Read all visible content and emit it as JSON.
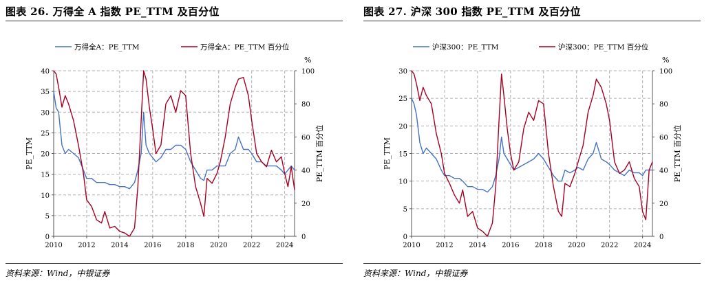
{
  "panels": [
    {
      "figure_title": "图表 26. 万得全 A 指数 PE_TTM 及百分位",
      "source": "资料来源：Wind，中银证券",
      "chart_data": {
        "type": "line",
        "x_ticks": [
          "2010",
          "2012",
          "2014",
          "2016",
          "2018",
          "2020",
          "2022",
          "2024"
        ],
        "xlim": [
          2010,
          2024.6
        ],
        "ylabel": "PE_TTM",
        "ylim": [
          0,
          40
        ],
        "y_ticks": [
          0,
          5,
          10,
          15,
          20,
          25,
          30,
          35,
          40
        ],
        "y2label": "PE_TTM 百分位",
        "y2unit": "%",
        "y2lim": [
          0,
          100
        ],
        "y2_ticks": [
          0,
          20,
          40,
          60,
          80,
          100
        ],
        "grid": true,
        "legend": "top",
        "series": [
          {
            "name": "万得全A：PE_TTM",
            "axis": "left",
            "color": "#4472c4",
            "x": [
              2010.0,
              2010.15,
              2010.3,
              2010.5,
              2010.7,
              2010.9,
              2011.2,
              2011.5,
              2011.8,
              2012.0,
              2012.3,
              2012.6,
              2012.9,
              2013.1,
              2013.4,
              2013.7,
              2014.0,
              2014.3,
              2014.6,
              2014.9,
              2015.1,
              2015.3,
              2015.45,
              2015.6,
              2015.8,
              2016.0,
              2016.2,
              2016.5,
              2016.8,
              2017.1,
              2017.4,
              2017.7,
              2018.0,
              2018.3,
              2018.6,
              2018.9,
              2019.1,
              2019.3,
              2019.6,
              2019.9,
              2020.1,
              2020.4,
              2020.7,
              2021.0,
              2021.2,
              2021.5,
              2021.8,
              2022.0,
              2022.3,
              2022.6,
              2022.9,
              2023.2,
              2023.5,
              2023.8,
              2024.0,
              2024.2,
              2024.4,
              2024.6
            ],
            "y": [
              35,
              31,
              30,
              22,
              20,
              21,
              20,
              19,
              16,
              14,
              14,
              13,
              13,
              13,
              12.5,
              12.5,
              12,
              12,
              11.5,
              13,
              16,
              20,
              30,
              22,
              20,
              19,
              18,
              19,
              21,
              21,
              22,
              22,
              21,
              18,
              16,
              14,
              13.5,
              16,
              16,
              17,
              17,
              17,
              20,
              21,
              24,
              21,
              21,
              20,
              18,
              18,
              17,
              17,
              17,
              16,
              15,
              16,
              17,
              16
            ]
          },
          {
            "name": "万得全A：PE_TTM 百分位",
            "axis": "right",
            "color": "#a50021",
            "x": [
              2010.0,
              2010.15,
              2010.3,
              2010.5,
              2010.7,
              2010.9,
              2011.2,
              2011.5,
              2011.8,
              2012.0,
              2012.3,
              2012.6,
              2012.9,
              2013.1,
              2013.4,
              2013.7,
              2014.0,
              2014.3,
              2014.6,
              2014.9,
              2015.1,
              2015.3,
              2015.45,
              2015.6,
              2015.8,
              2016.0,
              2016.2,
              2016.5,
              2016.8,
              2017.1,
              2017.4,
              2017.7,
              2018.0,
              2018.3,
              2018.6,
              2018.9,
              2019.1,
              2019.3,
              2019.6,
              2019.9,
              2020.1,
              2020.4,
              2020.7,
              2021.0,
              2021.2,
              2021.5,
              2021.8,
              2022.0,
              2022.3,
              2022.6,
              2022.9,
              2023.2,
              2023.5,
              2023.8,
              2024.0,
              2024.2,
              2024.4,
              2024.6
            ],
            "y": [
              100,
              98,
              90,
              78,
              85,
              80,
              70,
              55,
              38,
              22,
              18,
              10,
              8,
              15,
              5,
              6,
              3,
              2,
              0,
              5,
              30,
              70,
              100,
              95,
              78,
              65,
              50,
              55,
              80,
              85,
              75,
              88,
              85,
              50,
              30,
              20,
              12,
              35,
              32,
              38,
              45,
              60,
              80,
              90,
              95,
              96,
              85,
              70,
              50,
              45,
              42,
              52,
              45,
              48,
              38,
              30,
              42,
              28
            ]
          }
        ]
      }
    },
    {
      "figure_title": "图表 27. 沪深 300 指数 PE_TTM 及百分位",
      "source": "资料来源：Wind，中银证券",
      "chart_data": {
        "type": "line",
        "x_ticks": [
          "2010",
          "2012",
          "2014",
          "2016",
          "2018",
          "2020",
          "2022",
          "2024"
        ],
        "xlim": [
          2010,
          2024.6
        ],
        "ylabel": "PE_TTM",
        "ylim": [
          0,
          30
        ],
        "y_ticks": [
          0,
          5,
          10,
          15,
          20,
          25,
          30
        ],
        "y2label": "PE_TTM 百分位",
        "y2unit": "%",
        "y2lim": [
          0,
          100
        ],
        "y2_ticks": [
          0,
          20,
          40,
          60,
          80,
          100
        ],
        "grid": true,
        "legend": "top",
        "series": [
          {
            "name": "沪深300：PE_TTM",
            "axis": "left",
            "color": "#4472c4",
            "x": [
              2010.0,
              2010.15,
              2010.3,
              2010.5,
              2010.7,
              2010.9,
              2011.2,
              2011.5,
              2011.8,
              2012.0,
              2012.3,
              2012.6,
              2012.9,
              2013.1,
              2013.4,
              2013.7,
              2014.0,
              2014.3,
              2014.6,
              2014.9,
              2015.1,
              2015.3,
              2015.45,
              2015.6,
              2015.8,
              2016.0,
              2016.2,
              2016.5,
              2016.8,
              2017.1,
              2017.4,
              2017.7,
              2018.0,
              2018.3,
              2018.6,
              2018.9,
              2019.1,
              2019.3,
              2019.6,
              2019.9,
              2020.1,
              2020.4,
              2020.7,
              2021.0,
              2021.2,
              2021.5,
              2021.8,
              2022.0,
              2022.3,
              2022.6,
              2022.9,
              2023.2,
              2023.5,
              2023.8,
              2024.0,
              2024.2,
              2024.4,
              2024.6
            ],
            "y": [
              25,
              24,
              22,
              17,
              15,
              16,
              15,
              14,
              12,
              11,
              11,
              10.5,
              10.5,
              10,
              9,
              9,
              8.5,
              8.5,
              8,
              9,
              11,
              14,
              18,
              15,
              14,
              13,
              12,
              12.5,
              13,
              13.5,
              14,
              15,
              14,
              12.5,
              11,
              10,
              10,
              12,
              11.5,
              12,
              12.5,
              12,
              14,
              15,
              17,
              14,
              13.5,
              13,
              12,
              11.5,
              11,
              12,
              11.5,
              11.5,
              11,
              12,
              12,
              12
            ]
          },
          {
            "name": "沪深300：PE_TTM 百分位",
            "axis": "right",
            "color": "#a50021",
            "x": [
              2010.0,
              2010.15,
              2010.3,
              2010.5,
              2010.7,
              2010.9,
              2011.2,
              2011.5,
              2011.8,
              2012.0,
              2012.3,
              2012.6,
              2012.9,
              2013.1,
              2013.4,
              2013.7,
              2014.0,
              2014.3,
              2014.6,
              2014.9,
              2015.1,
              2015.3,
              2015.45,
              2015.6,
              2015.8,
              2016.0,
              2016.2,
              2016.5,
              2016.8,
              2017.1,
              2017.4,
              2017.7,
              2018.0,
              2018.3,
              2018.6,
              2018.9,
              2019.1,
              2019.3,
              2019.6,
              2019.9,
              2020.1,
              2020.4,
              2020.7,
              2021.0,
              2021.2,
              2021.5,
              2021.8,
              2022.0,
              2022.3,
              2022.6,
              2022.9,
              2023.2,
              2023.5,
              2023.8,
              2024.0,
              2024.2,
              2024.4,
              2024.6
            ],
            "y": [
              100,
              98,
              92,
              82,
              90,
              85,
              80,
              62,
              50,
              38,
              32,
              25,
              20,
              28,
              12,
              15,
              5,
              3,
              0,
              8,
              30,
              70,
              98,
              85,
              65,
              50,
              40,
              45,
              65,
              75,
              70,
              82,
              80,
              50,
              30,
              15,
              12,
              32,
              30,
              38,
              45,
              55,
              75,
              85,
              95,
              90,
              80,
              70,
              45,
              38,
              40,
              45,
              35,
              30,
              15,
              10,
              40,
              45
            ]
          }
        ]
      }
    }
  ]
}
